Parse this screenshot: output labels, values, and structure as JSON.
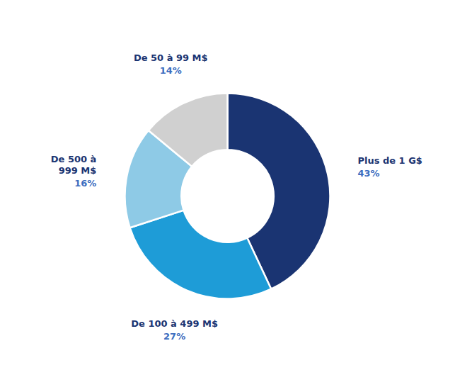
{
  "chart_data": {
    "type": "pie",
    "categories": [
      "Plus de 1 G$",
      "De 100 à 499 M$",
      "De 500 à\n999 M$",
      "De 50 à 99 M$"
    ],
    "values": [
      43,
      27,
      16,
      14
    ],
    "value_labels": [
      "43%",
      "27%",
      "16%",
      "14%"
    ],
    "colors": [
      "#1a3472",
      "#1e9cd7",
      "#8ecae6",
      "#d0d0d0"
    ],
    "data_labels": true
  }
}
